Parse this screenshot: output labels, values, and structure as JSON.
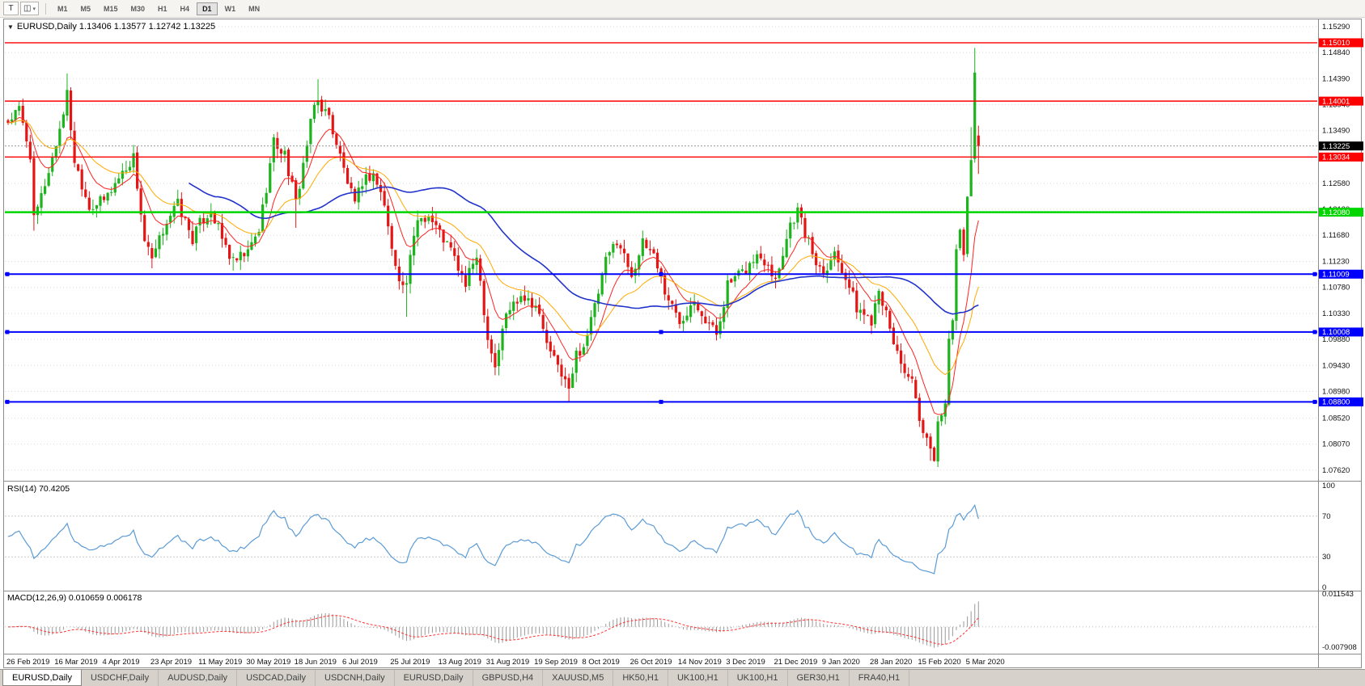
{
  "toolbar": {
    "tools": [
      {
        "name": "chart-tool",
        "glyph": "T"
      },
      {
        "name": "objects-dropdown",
        "glyph": "◫",
        "caret": "▾"
      }
    ],
    "timeframes": [
      "M1",
      "M5",
      "M15",
      "M30",
      "H1",
      "H4",
      "D1",
      "W1",
      "MN"
    ],
    "active_timeframe": "D1"
  },
  "chart": {
    "marker": "▼",
    "title": "EURUSD,Daily 1.13406 1.13577 1.12742 1.13225",
    "symbol": "EURUSD",
    "period": "Daily",
    "open": "1.13406",
    "high": "1.13577",
    "low": "1.12742",
    "close": "1.13225"
  },
  "rsi_panel": {
    "label": "RSI(14) 70.4205",
    "axis": [
      "100",
      "70",
      "30",
      "0"
    ],
    "levels": [
      70,
      30
    ]
  },
  "macd_panel": {
    "label": "MACD(12,26,9) 0.010659 0.006178",
    "axis_top": "0.011543",
    "axis_bottom": "-0.007908"
  },
  "tabs": {
    "items": [
      "EURUSD,Daily",
      "USDCHF,Daily",
      "AUDUSD,Daily",
      "USDCAD,Daily",
      "USDCNH,Daily",
      "EURUSD,Daily",
      "GBPUSD,H4",
      "XAUUSD,M5",
      "HK50,H1",
      "UK100,H1",
      "UK100,H1",
      "GER30,H1",
      "FRA40,H1"
    ],
    "active_index": 0
  },
  "chart_data": {
    "type": "candlestick",
    "symbol": "EURUSD",
    "timeframe": "D1",
    "candle_count": 264,
    "candle_spacing": 4.56,
    "price_view": [
      1.0745,
      1.154
    ],
    "y_axis_labels": [
      "1.15290",
      "1.14840",
      "1.14390",
      "1.13940",
      "1.13490",
      "1.13040",
      "1.12580",
      "1.12130",
      "1.11680",
      "1.11230",
      "1.10780",
      "1.10330",
      "1.09880",
      "1.09430",
      "1.08980",
      "1.08520",
      "1.08070",
      "1.07620"
    ],
    "x_labels": [
      "26 Feb 2019",
      "16 Mar 2019",
      "4 Apr 2019",
      "23 Apr 2019",
      "11 May 2019",
      "30 May 2019",
      "18 Jun 2019",
      "6 Jul 2019",
      "25 Jul 2019",
      "13 Aug 2019",
      "31 Aug 2019",
      "19 Sep 2019",
      "8 Oct 2019",
      "26 Oct 2019",
      "14 Nov 2019",
      "3 Dec 2019",
      "21 Dec 2019",
      "9 Jan 2020",
      "28 Jan 2020",
      "15 Feb 2020",
      "5 Mar 2020"
    ],
    "hlines": [
      {
        "value": 1.1501,
        "label": "1.15010",
        "color": "#ff0000",
        "width": 1.4,
        "selected": false
      },
      {
        "value": 1.14001,
        "label": "1.14001",
        "color": "#ff0000",
        "width": 1.4,
        "selected": false
      },
      {
        "value": 1.13034,
        "label": "1.13034",
        "color": "#ff0000",
        "width": 1.4,
        "selected": false
      },
      {
        "value": 1.1208,
        "label": "1.12080",
        "color": "#00d500",
        "width": 2.4,
        "selected": false
      },
      {
        "value": 1.11009,
        "label": "1.11009",
        "color": "#0000ff",
        "width": 2.0,
        "selected": true
      },
      {
        "value": 1.10008,
        "label": "1.10008",
        "color": "#0000ff",
        "width": 2.0,
        "selected": true
      },
      {
        "value": 1.088,
        "label": "1.08800",
        "color": "#0000ff",
        "width": 2.0,
        "selected": true
      }
    ],
    "current_price": 1.13225,
    "current_price_label": "1.13225",
    "last_candle": [
      1.13406,
      1.13577,
      1.12742,
      1.13225
    ],
    "price_keyframes": [
      [
        0,
        1.1365
      ],
      [
        3,
        1.1385
      ],
      [
        6,
        1.1308
      ],
      [
        7,
        1.1192
      ],
      [
        9,
        1.1235
      ],
      [
        13,
        1.1325
      ],
      [
        16,
        1.1412
      ],
      [
        18,
        1.1298
      ],
      [
        22,
        1.1218
      ],
      [
        26,
        1.1228
      ],
      [
        30,
        1.1268
      ],
      [
        34,
        1.1303
      ],
      [
        37,
        1.1158
      ],
      [
        39,
        1.1122
      ],
      [
        43,
        1.1195
      ],
      [
        46,
        1.1222
      ],
      [
        50,
        1.1162
      ],
      [
        52,
        1.1188
      ],
      [
        55,
        1.1212
      ],
      [
        58,
        1.1162
      ],
      [
        61,
        1.112
      ],
      [
        65,
        1.1138
      ],
      [
        68,
        1.1178
      ],
      [
        70,
        1.1252
      ],
      [
        72,
        1.133
      ],
      [
        75,
        1.1308
      ],
      [
        78,
        1.1222
      ],
      [
        80,
        1.1292
      ],
      [
        83,
        1.1392
      ],
      [
        84,
        1.14
      ],
      [
        87,
        1.1372
      ],
      [
        91,
        1.1282
      ],
      [
        94,
        1.1218
      ],
      [
        96,
        1.1262
      ],
      [
        99,
        1.1275
      ],
      [
        102,
        1.1222
      ],
      [
        104,
        1.1142
      ],
      [
        107,
        1.1078
      ],
      [
        108,
        1.1088
      ],
      [
        111,
        1.1198
      ],
      [
        114,
        1.1202
      ],
      [
        117,
        1.1172
      ],
      [
        120,
        1.1142
      ],
      [
        124,
        1.1082
      ],
      [
        127,
        1.1138
      ],
      [
        130,
        1.0992
      ],
      [
        132,
        1.0942
      ],
      [
        135,
        1.1032
      ],
      [
        139,
        1.1068
      ],
      [
        143,
        1.1048
      ],
      [
        147,
        1.0962
      ],
      [
        150,
        1.0932
      ],
      [
        152,
        1.0898
      ],
      [
        154,
        1.0962
      ],
      [
        156,
        1.0978
      ],
      [
        159,
        1.1042
      ],
      [
        162,
        1.1122
      ],
      [
        165,
        1.1162
      ],
      [
        169,
        1.1102
      ],
      [
        172,
        1.1152
      ],
      [
        175,
        1.1138
      ],
      [
        178,
        1.1072
      ],
      [
        182,
        1.1018
      ],
      [
        186,
        1.1062
      ],
      [
        189,
        1.1022
      ],
      [
        192,
        1.0998
      ],
      [
        195,
        1.1082
      ],
      [
        199,
        1.1102
      ],
      [
        203,
        1.1132
      ],
      [
        206,
        1.1122
      ],
      [
        208,
        1.1092
      ],
      [
        212,
        1.1188
      ],
      [
        214,
        1.1212
      ],
      [
        216,
        1.1172
      ],
      [
        219,
        1.1122
      ],
      [
        221,
        1.1108
      ],
      [
        224,
        1.1138
      ],
      [
        227,
        1.1098
      ],
      [
        230,
        1.1042
      ],
      [
        234,
        1.1022
      ],
      [
        236,
        1.1082
      ],
      [
        239,
        1.1002
      ],
      [
        242,
        1.0948
      ],
      [
        245,
        1.0912
      ],
      [
        247,
        1.0842
      ],
      [
        250,
        1.0792
      ],
      [
        251,
        1.0786
      ],
      [
        252,
        1.0846
      ],
      [
        253,
        1.0852
      ],
      [
        254,
        1.0882
      ],
      [
        255,
        1.0999
      ],
      [
        256,
        1.1026
      ],
      [
        257,
        1.1135
      ],
      [
        258,
        1.1173
      ],
      [
        259,
        1.1135
      ],
      [
        260,
        1.124
      ],
      [
        261,
        1.1288
      ],
      [
        262,
        1.145
      ],
      [
        263,
        1.13225
      ]
    ],
    "wicks": [
      [
        7,
        "low",
        1.1176
      ],
      [
        16,
        "high",
        1.1448
      ],
      [
        39,
        "low",
        1.1111
      ],
      [
        61,
        "low",
        1.1107
      ],
      [
        78,
        "low",
        1.1181
      ],
      [
        84,
        "high",
        1.1438
      ],
      [
        108,
        "low",
        1.1027
      ],
      [
        132,
        "low",
        1.0926
      ],
      [
        152,
        "low",
        1.0879
      ],
      [
        250,
        "low",
        1.0778
      ],
      [
        261,
        "high",
        1.1355
      ],
      [
        262,
        "high",
        1.1492
      ]
    ],
    "moving_averages": [
      {
        "period": 10,
        "type": "ema",
        "color": "#ff2222"
      },
      {
        "period": 25,
        "type": "ema",
        "color": "#ffaa00"
      },
      {
        "period": 50,
        "type": "sma",
        "color": "#2233cc"
      }
    ],
    "rsi": {
      "period": 14,
      "current": 70.4205
    },
    "macd": {
      "fast": 12,
      "slow": 26,
      "signal": 9,
      "current_macd": 0.010659,
      "current_signal": 0.006178,
      "view": [
        -0.0085,
        0.0118
      ]
    },
    "colors": {
      "bull": "#1db31d",
      "bear": "#e41515",
      "rsi": "#5b9bd5",
      "macd_hist": "#999999",
      "macd_signal": "#ff3333",
      "grid": "#d9d9d9"
    }
  }
}
